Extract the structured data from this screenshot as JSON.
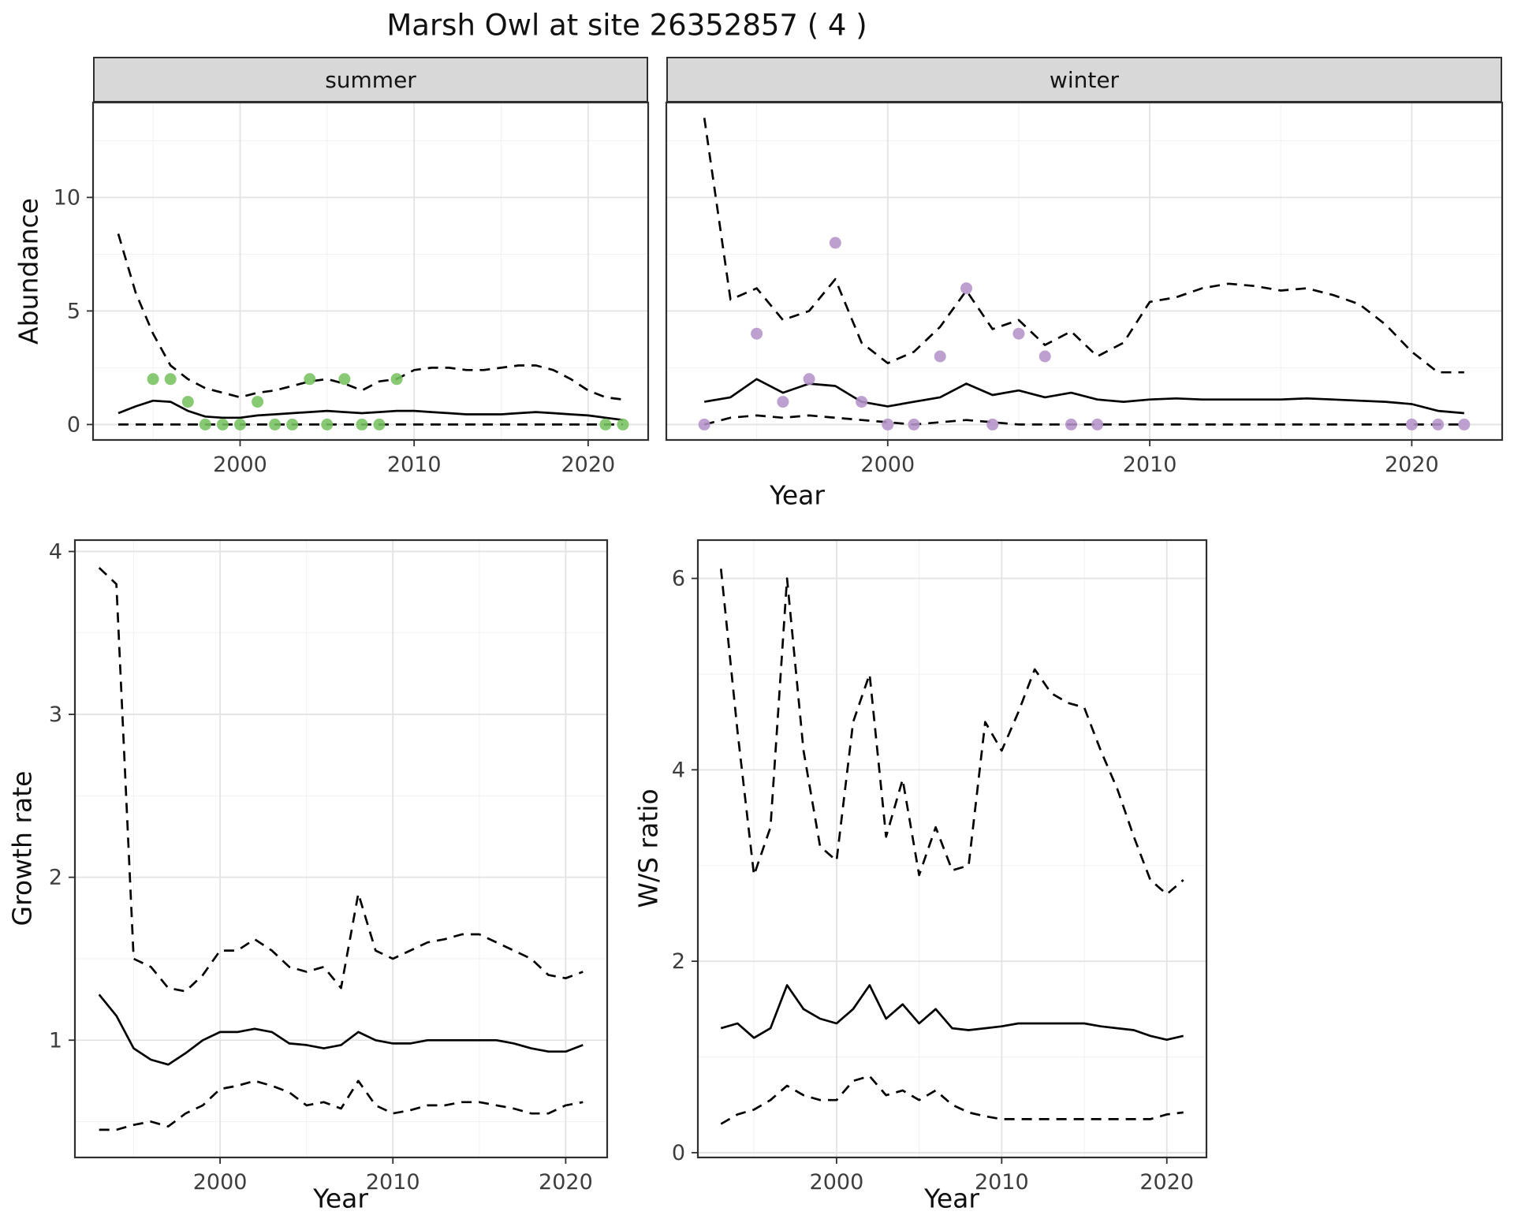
{
  "title": "Marsh Owl at site 26352857 ( 4 )",
  "colors": {
    "summer_point": "#77c261",
    "winter_point": "#b593c9",
    "line": "#000000",
    "strip_bg": "#d8d8d8",
    "grid_major": "#e3e3e3",
    "panel_border": "#2f2f2f"
  },
  "chart_data": [
    {
      "id": "abundance-summer",
      "type": "line",
      "facet_label": "summer",
      "xlabel": "Year",
      "ylabel": "Abundance",
      "xlim": [
        1991.55,
        2023.45
      ],
      "ylim": [
        -0.68,
        14.18
      ],
      "xticks": [
        2000,
        2010,
        2020
      ],
      "yticks": [
        0,
        5,
        10
      ],
      "x_minor": [
        1995,
        2005,
        2015
      ],
      "y_minor": [
        2.5,
        7.5,
        12.5
      ],
      "x": [
        1993,
        1994,
        1995,
        1996,
        1997,
        1998,
        1999,
        2000,
        2001,
        2002,
        2003,
        2004,
        2005,
        2006,
        2007,
        2008,
        2009,
        2010,
        2011,
        2012,
        2013,
        2014,
        2015,
        2016,
        2017,
        2018,
        2019,
        2020,
        2021,
        2022
      ],
      "series": [
        {
          "name": "predicted-median",
          "linetype": "solid",
          "values": [
            0.5,
            0.8,
            1.05,
            1.0,
            0.6,
            0.35,
            0.3,
            0.3,
            0.4,
            0.45,
            0.5,
            0.55,
            0.6,
            0.55,
            0.5,
            0.55,
            0.6,
            0.6,
            0.55,
            0.5,
            0.45,
            0.45,
            0.45,
            0.5,
            0.55,
            0.5,
            0.45,
            0.4,
            0.3,
            0.2
          ]
        },
        {
          "name": "upper-95ci",
          "linetype": "dashed",
          "values": [
            8.4,
            5.8,
            4.0,
            2.6,
            2.0,
            1.6,
            1.4,
            1.2,
            1.4,
            1.5,
            1.7,
            1.9,
            2.0,
            1.8,
            1.5,
            1.9,
            2.0,
            2.4,
            2.5,
            2.5,
            2.4,
            2.4,
            2.5,
            2.6,
            2.6,
            2.4,
            2.0,
            1.5,
            1.2,
            1.1
          ]
        },
        {
          "name": "lower-95ci",
          "linetype": "dashed",
          "values": [
            0,
            0,
            0,
            0,
            0,
            0,
            0,
            0,
            0,
            0,
            0,
            0,
            0,
            0,
            0,
            0,
            0,
            0,
            0,
            0,
            0,
            0,
            0,
            0,
            0,
            0,
            0,
            0,
            0,
            0
          ]
        }
      ],
      "points": {
        "name": "observed-counts",
        "color": "#77c261",
        "x": [
          1995,
          1996,
          1997,
          1998,
          1999,
          2000,
          2001,
          2002,
          2003,
          2004,
          2005,
          2006,
          2007,
          2008,
          2009,
          2021,
          2022
        ],
        "y": [
          2,
          2,
          1,
          0,
          0,
          0,
          1,
          0,
          0,
          2,
          0,
          2,
          0,
          0,
          2,
          0,
          0
        ]
      }
    },
    {
      "id": "abundance-winter",
      "type": "line",
      "facet_label": "winter",
      "xlabel": "Year",
      "ylabel": "Abundance",
      "xlim": [
        1991.55,
        2023.45
      ],
      "ylim": [
        -0.68,
        14.18
      ],
      "xticks": [
        2000,
        2010,
        2020
      ],
      "yticks": [
        0,
        5,
        10
      ],
      "x_minor": [
        1995,
        2005,
        2015
      ],
      "y_minor": [
        2.5,
        7.5,
        12.5
      ],
      "x": [
        1993,
        1994,
        1995,
        1996,
        1997,
        1998,
        1999,
        2000,
        2001,
        2002,
        2003,
        2004,
        2005,
        2006,
        2007,
        2008,
        2009,
        2010,
        2011,
        2012,
        2013,
        2014,
        2015,
        2016,
        2017,
        2018,
        2019,
        2020,
        2021,
        2022
      ],
      "series": [
        {
          "name": "predicted-median",
          "linetype": "solid",
          "values": [
            1.0,
            1.2,
            2.0,
            1.4,
            1.8,
            1.7,
            1.0,
            0.8,
            1.0,
            1.2,
            1.8,
            1.3,
            1.5,
            1.2,
            1.4,
            1.1,
            1.0,
            1.1,
            1.15,
            1.1,
            1.1,
            1.1,
            1.1,
            1.15,
            1.1,
            1.05,
            1.0,
            0.9,
            0.6,
            0.5
          ]
        },
        {
          "name": "upper-95ci",
          "linetype": "dashed",
          "values": [
            13.5,
            5.5,
            6.0,
            4.6,
            5.0,
            6.4,
            3.6,
            2.7,
            3.2,
            4.3,
            5.9,
            4.2,
            4.6,
            3.5,
            4.1,
            3.0,
            3.6,
            5.4,
            5.6,
            6.0,
            6.2,
            6.1,
            5.9,
            6.0,
            5.7,
            5.3,
            4.4,
            3.2,
            2.3,
            2.3
          ]
        },
        {
          "name": "lower-95ci",
          "linetype": "dashed",
          "values": [
            0,
            0.3,
            0.4,
            0.3,
            0.4,
            0.3,
            0.2,
            0.1,
            0,
            0.1,
            0.2,
            0.1,
            0,
            0,
            0,
            0,
            0,
            0,
            0,
            0,
            0,
            0,
            0,
            0,
            0,
            0,
            0,
            0,
            0,
            0
          ]
        }
      ],
      "points": {
        "name": "observed-counts",
        "color": "#b593c9",
        "x": [
          1993,
          1995,
          1996,
          1997,
          1998,
          1999,
          2000,
          2001,
          2002,
          2003,
          2004,
          2005,
          2006,
          2007,
          2008,
          2020,
          2021,
          2022
        ],
        "y": [
          0,
          4,
          1,
          2,
          8,
          1,
          0,
          0,
          3,
          6,
          0,
          4,
          3,
          0,
          0,
          0,
          0,
          0
        ]
      }
    },
    {
      "id": "growth-rate",
      "type": "line",
      "xlabel": "Year",
      "ylabel": "Growth rate",
      "xlim": [
        1991.6,
        2022.4
      ],
      "ylim": [
        0.28,
        4.07
      ],
      "xticks": [
        2000,
        2010,
        2020
      ],
      "yticks": [
        1,
        2,
        3,
        4
      ],
      "x_minor": [
        1995,
        2005,
        2015
      ],
      "y_minor": [
        0.5,
        1.5,
        2.5,
        3.5
      ],
      "x": [
        1993,
        1994,
        1995,
        1996,
        1997,
        1998,
        1999,
        2000,
        2001,
        2002,
        2003,
        2004,
        2005,
        2006,
        2007,
        2008,
        2009,
        2010,
        2011,
        2012,
        2013,
        2014,
        2015,
        2016,
        2017,
        2018,
        2019,
        2020,
        2021
      ],
      "series": [
        {
          "name": "predicted-median",
          "linetype": "solid",
          "values": [
            1.28,
            1.15,
            0.95,
            0.88,
            0.85,
            0.92,
            1.0,
            1.05,
            1.05,
            1.07,
            1.05,
            0.98,
            0.97,
            0.95,
            0.97,
            1.05,
            1.0,
            0.98,
            0.98,
            1.0,
            1.0,
            1.0,
            1.0,
            1.0,
            0.98,
            0.95,
            0.93,
            0.93,
            0.97
          ]
        },
        {
          "name": "upper-95ci",
          "linetype": "dashed",
          "values": [
            3.9,
            3.8,
            1.5,
            1.45,
            1.32,
            1.3,
            1.4,
            1.55,
            1.55,
            1.62,
            1.55,
            1.45,
            1.42,
            1.45,
            1.32,
            1.9,
            1.55,
            1.5,
            1.55,
            1.6,
            1.62,
            1.65,
            1.65,
            1.6,
            1.55,
            1.5,
            1.4,
            1.38,
            1.42
          ]
        },
        {
          "name": "lower-95ci",
          "linetype": "dashed",
          "values": [
            0.45,
            0.45,
            0.48,
            0.5,
            0.47,
            0.55,
            0.6,
            0.7,
            0.72,
            0.75,
            0.72,
            0.68,
            0.6,
            0.62,
            0.58,
            0.75,
            0.6,
            0.55,
            0.57,
            0.6,
            0.6,
            0.62,
            0.62,
            0.6,
            0.58,
            0.55,
            0.55,
            0.6,
            0.62
          ]
        }
      ]
    },
    {
      "id": "ws-ratio",
      "type": "line",
      "xlabel": "Year",
      "ylabel": "W/S ratio",
      "xlim": [
        1991.6,
        2022.4
      ],
      "ylim": [
        -0.05,
        6.4
      ],
      "xticks": [
        2000,
        2010,
        2020
      ],
      "yticks": [
        0,
        2,
        4,
        6
      ],
      "x_minor": [
        1995,
        2005,
        2015
      ],
      "y_minor": [
        1,
        3,
        5
      ],
      "x": [
        1993,
        1994,
        1995,
        1996,
        1997,
        1998,
        1999,
        2000,
        2001,
        2002,
        2003,
        2004,
        2005,
        2006,
        2007,
        2008,
        2009,
        2010,
        2011,
        2012,
        2013,
        2014,
        2015,
        2016,
        2017,
        2018,
        2019,
        2020,
        2021
      ],
      "series": [
        {
          "name": "predicted-median",
          "linetype": "solid",
          "values": [
            1.3,
            1.35,
            1.2,
            1.3,
            1.75,
            1.5,
            1.4,
            1.35,
            1.5,
            1.75,
            1.4,
            1.55,
            1.35,
            1.5,
            1.3,
            1.28,
            1.3,
            1.32,
            1.35,
            1.35,
            1.35,
            1.35,
            1.35,
            1.32,
            1.3,
            1.28,
            1.22,
            1.18,
            1.22
          ]
        },
        {
          "name": "upper-95ci",
          "linetype": "dashed",
          "values": [
            6.1,
            4.4,
            2.9,
            3.4,
            6.0,
            4.2,
            3.2,
            3.05,
            4.5,
            5.0,
            3.3,
            3.9,
            2.9,
            3.4,
            2.95,
            3.0,
            4.5,
            4.2,
            4.6,
            5.05,
            4.8,
            4.7,
            4.65,
            4.2,
            3.8,
            3.3,
            2.85,
            2.7,
            2.85
          ]
        },
        {
          "name": "lower-95ci",
          "linetype": "dashed",
          "values": [
            0.3,
            0.4,
            0.45,
            0.55,
            0.7,
            0.6,
            0.55,
            0.55,
            0.75,
            0.8,
            0.6,
            0.65,
            0.55,
            0.65,
            0.5,
            0.42,
            0.38,
            0.35,
            0.35,
            0.35,
            0.35,
            0.35,
            0.35,
            0.35,
            0.35,
            0.35,
            0.35,
            0.4,
            0.42
          ]
        }
      ]
    }
  ]
}
